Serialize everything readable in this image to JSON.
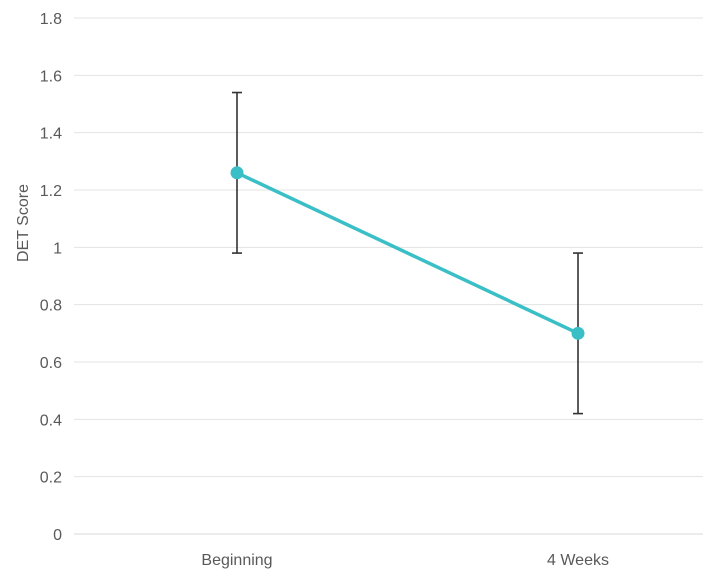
{
  "chart_data": {
    "type": "line",
    "title": "",
    "xlabel": "",
    "ylabel": "DET Score",
    "categories": [
      "Beginning",
      "4 Weeks"
    ],
    "series": [
      {
        "values": [
          1.26,
          0.7
        ],
        "error_low": [
          0.98,
          0.42
        ],
        "error_high": [
          1.54,
          0.98
        ],
        "color": "#3bbfc6"
      }
    ],
    "ylim": [
      0,
      1.8
    ],
    "yticks": [
      0,
      0.2,
      0.4,
      0.6,
      0.8,
      1,
      1.2,
      1.4,
      1.6,
      1.8
    ],
    "ytick_labels": [
      "0",
      "0.2",
      "0.4",
      "0.6",
      "0.8",
      "1",
      "1.2",
      "1.4",
      "1.6",
      "1.8"
    ],
    "grid": true,
    "legend": "none",
    "error_bar_color": "#333333"
  }
}
